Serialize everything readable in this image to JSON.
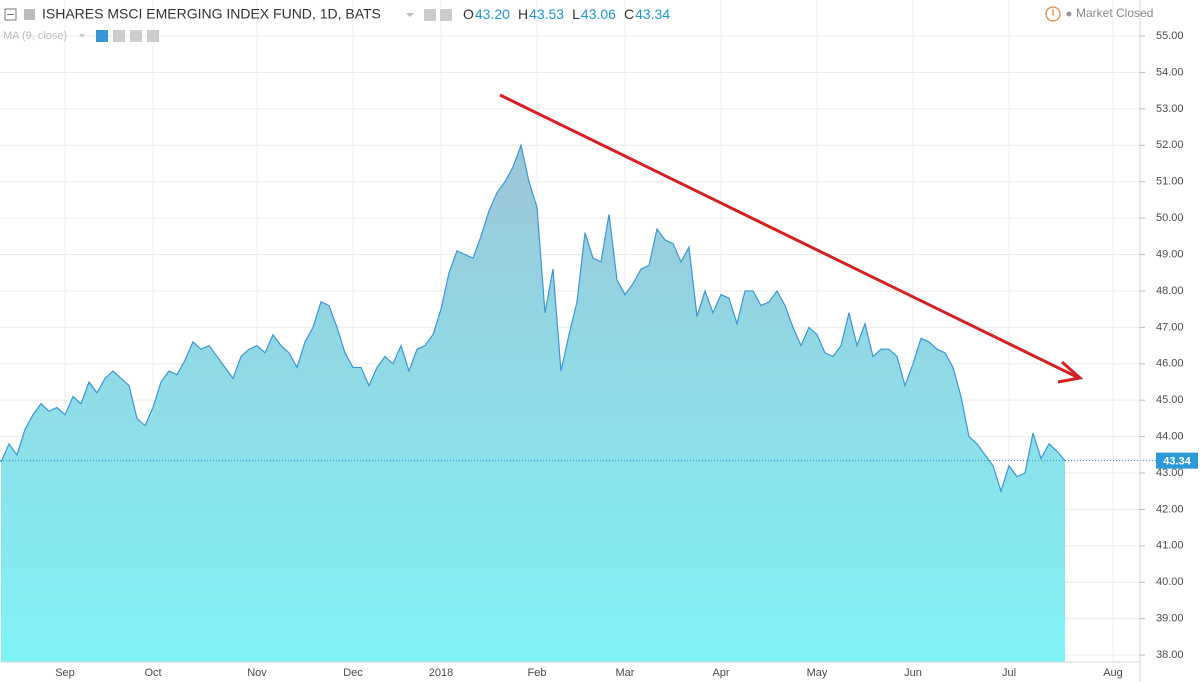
{
  "chart_data": {
    "type": "area",
    "title": "ISHARES MSCI EMERGING INDEX FUND, 1D, BATS",
    "ohlc_labels": [
      "O",
      "H",
      "L",
      "C"
    ],
    "ohlc_values": [
      "43.20",
      "43.53",
      "43.06",
      "43.34"
    ],
    "indicator": "MA (9, close)",
    "status": "Market Closed",
    "last_price": 43.34,
    "last_price_label": "43.34",
    "line_color": "#3a97d6",
    "fill_top": "#9cc6d9",
    "fill_bottom": "#80f3f6",
    "grid": true,
    "ylim": [
      37.81,
      55.99
    ],
    "yticks": [
      {
        "value": 38,
        "label": "38.00"
      },
      {
        "value": 39,
        "label": "39.00"
      },
      {
        "value": 40,
        "label": "40.00"
      },
      {
        "value": 41,
        "label": "41.00"
      },
      {
        "value": 42,
        "label": "42.00"
      },
      {
        "value": 43,
        "label": "43.00"
      },
      {
        "value": 44,
        "label": "44.00"
      },
      {
        "value": 45,
        "label": "45.00"
      },
      {
        "value": 46,
        "label": "46.00"
      },
      {
        "value": 47,
        "label": "47.00"
      },
      {
        "value": 48,
        "label": "48.00"
      },
      {
        "value": 49,
        "label": "49.00"
      },
      {
        "value": 50,
        "label": "50.00"
      },
      {
        "value": 51,
        "label": "51.00"
      },
      {
        "value": 52,
        "label": "52.00"
      },
      {
        "value": 53,
        "label": "53.00"
      },
      {
        "value": 54,
        "label": "54.00"
      },
      {
        "value": 55,
        "label": "55.00"
      }
    ],
    "categories": [
      null,
      null,
      null,
      null,
      null,
      null,
      null,
      null,
      "Sep",
      null,
      null,
      null,
      null,
      null,
      null,
      null,
      null,
      null,
      null,
      "Oct",
      null,
      null,
      null,
      null,
      null,
      null,
      null,
      null,
      null,
      null,
      null,
      null,
      "Nov",
      null,
      null,
      null,
      null,
      null,
      null,
      null,
      null,
      null,
      null,
      null,
      "Dec",
      null,
      null,
      null,
      null,
      null,
      null,
      null,
      null,
      null,
      null,
      "2018",
      null,
      null,
      null,
      null,
      null,
      null,
      null,
      null,
      null,
      null,
      null,
      "Feb",
      null,
      null,
      null,
      null,
      null,
      null,
      null,
      null,
      null,
      null,
      "Mar",
      null,
      null,
      null,
      null,
      null,
      null,
      null,
      null,
      null,
      null,
      null,
      "Apr",
      null,
      null,
      null,
      null,
      null,
      null,
      null,
      null,
      null,
      null,
      null,
      "May",
      null,
      null,
      null,
      null,
      null,
      null,
      null,
      null,
      null,
      null,
      null,
      "Jun",
      null,
      null,
      null,
      null,
      null,
      null,
      null,
      null,
      null,
      null,
      null,
      "Jul",
      null,
      null,
      null,
      null,
      null,
      null,
      null,
      null,
      null,
      null,
      null,
      null,
      "Aug"
    ],
    "values": [
      43.3,
      43.8,
      43.5,
      44.2,
      44.6,
      44.9,
      44.7,
      44.8,
      44.6,
      45.1,
      44.9,
      45.5,
      45.2,
      45.6,
      45.8,
      45.6,
      45.4,
      44.5,
      44.3,
      44.8,
      45.5,
      45.8,
      45.7,
      46.1,
      46.6,
      46.4,
      46.5,
      46.2,
      45.9,
      45.6,
      46.2,
      46.4,
      46.5,
      46.3,
      46.8,
      46.5,
      46.3,
      45.9,
      46.6,
      47.0,
      47.7,
      47.6,
      47.0,
      46.3,
      45.9,
      45.9,
      45.4,
      45.9,
      46.2,
      46.0,
      46.5,
      45.8,
      46.4,
      46.5,
      46.8,
      47.5,
      48.5,
      49.1,
      49.0,
      48.9,
      49.5,
      50.2,
      50.7,
      51.0,
      51.4,
      52.0,
      51.0,
      50.3,
      47.4,
      48.6,
      45.8,
      46.8,
      47.7,
      49.6,
      48.9,
      48.8,
      50.1,
      48.3,
      47.9,
      48.2,
      48.6,
      48.7,
      49.7,
      49.4,
      49.3,
      48.8,
      49.2,
      47.3,
      48.0,
      47.4,
      47.9,
      47.8,
      47.1,
      48.0,
      48.0,
      47.6,
      47.7,
      48.0,
      47.6,
      47.0,
      46.5,
      47.0,
      46.8,
      46.3,
      46.2,
      46.5,
      47.4,
      46.5,
      47.1,
      46.2,
      46.4,
      46.4,
      46.2,
      45.4,
      46.0,
      46.7,
      46.6,
      46.4,
      46.3,
      45.9,
      45.1,
      44.0,
      43.8,
      43.5,
      43.2,
      42.5,
      43.2,
      42.9,
      43.0,
      44.1,
      43.4,
      43.8,
      43.6,
      43.34,
      null,
      null,
      null,
      null,
      null,
      null
    ]
  }
}
